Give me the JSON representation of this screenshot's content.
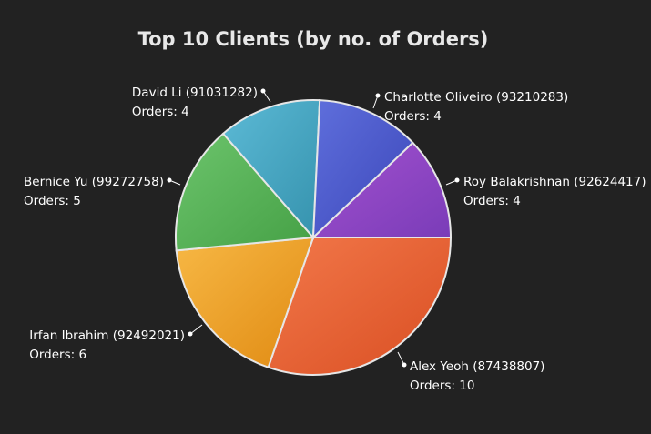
{
  "chart_data": {
    "type": "pie",
    "title": "Top 10 Clients (by no. of Orders)",
    "value_prefix": "Orders: ",
    "slices": [
      {
        "name": "Roy Balakrishnan (92624417)",
        "value": 4,
        "color_light": "#a351cf",
        "color_dark": "#7a3cb8"
      },
      {
        "name": "Alex Yeoh (87438807)",
        "value": 10,
        "color_light": "#f2784a",
        "color_dark": "#d94e22"
      },
      {
        "name": "Irfan Ibrahim (92492021)",
        "value": 6,
        "color_light": "#f7b845",
        "color_dark": "#e08a12"
      },
      {
        "name": "Bernice Yu (99272758)",
        "value": 5,
        "color_light": "#6cc46c",
        "color_dark": "#45a045"
      },
      {
        "name": "David Li (91031282)",
        "value": 4,
        "color_light": "#5cbad6",
        "color_dark": "#3592ad"
      },
      {
        "name": "Charlotte Oliveiro (93210283)",
        "value": 4,
        "color_light": "#5f6fdc",
        "color_dark": "#3b46b9"
      }
    ],
    "background": "#222222",
    "text_color": "#ffffff"
  }
}
